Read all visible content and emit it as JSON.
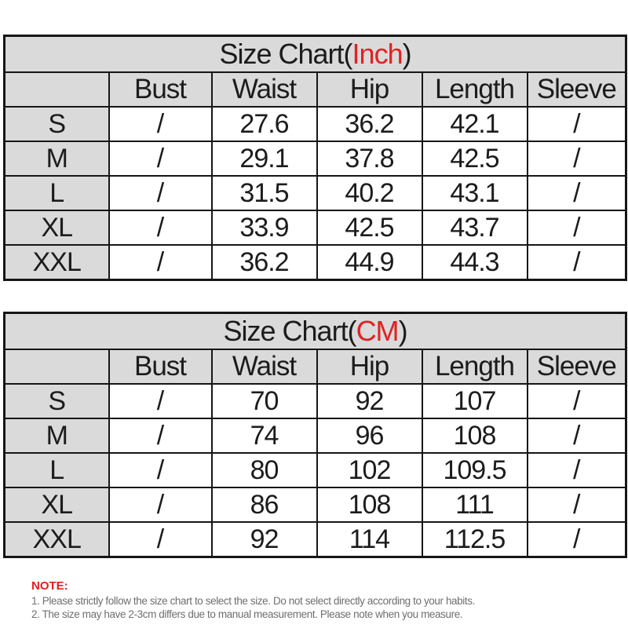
{
  "colors": {
    "cell_gray": "#dadada",
    "accent_red": "#e02222",
    "border": "#161616",
    "note_text_gray": "#6f6f6f",
    "background": "#ffffff"
  },
  "tables": [
    {
      "title": {
        "prefix": "Size Chart(",
        "unit": "Inch",
        "suffix": ")"
      },
      "columns": [
        "",
        "Bust",
        "Waist",
        "Hip",
        "Length",
        "Sleeve"
      ],
      "rows": [
        [
          "S",
          "/",
          "27.6",
          "36.2",
          "42.1",
          "/"
        ],
        [
          "M",
          "/",
          "29.1",
          "37.8",
          "42.5",
          "/"
        ],
        [
          "L",
          "/",
          "31.5",
          "40.2",
          "43.1",
          "/"
        ],
        [
          "XL",
          "/",
          "33.9",
          "42.5",
          "43.7",
          "/"
        ],
        [
          "XXL",
          "/",
          "36.2",
          "44.9",
          "44.3",
          "/"
        ]
      ]
    },
    {
      "title": {
        "prefix": "Size Chart(",
        "unit": "CM",
        "suffix": ")"
      },
      "columns": [
        "",
        "Bust",
        "Waist",
        "Hip",
        "Length",
        "Sleeve"
      ],
      "rows": [
        [
          "S",
          "/",
          "70",
          "92",
          "107",
          "/"
        ],
        [
          "M",
          "/",
          "74",
          "96",
          "108",
          "/"
        ],
        [
          "L",
          "/",
          "80",
          "102",
          "109.5",
          "/"
        ],
        [
          "XL",
          "/",
          "86",
          "108",
          "111",
          "/"
        ],
        [
          "XXL",
          "/",
          "92",
          "114",
          "112.5",
          "/"
        ]
      ]
    }
  ],
  "note": {
    "label": "NOTE:",
    "lines": [
      "1. Please strictly follow the size chart  to select the size. Do not select directly according to your habits.",
      "2. The size may have 2-3cm differs due to manual measurement. Please note when you measure."
    ]
  }
}
